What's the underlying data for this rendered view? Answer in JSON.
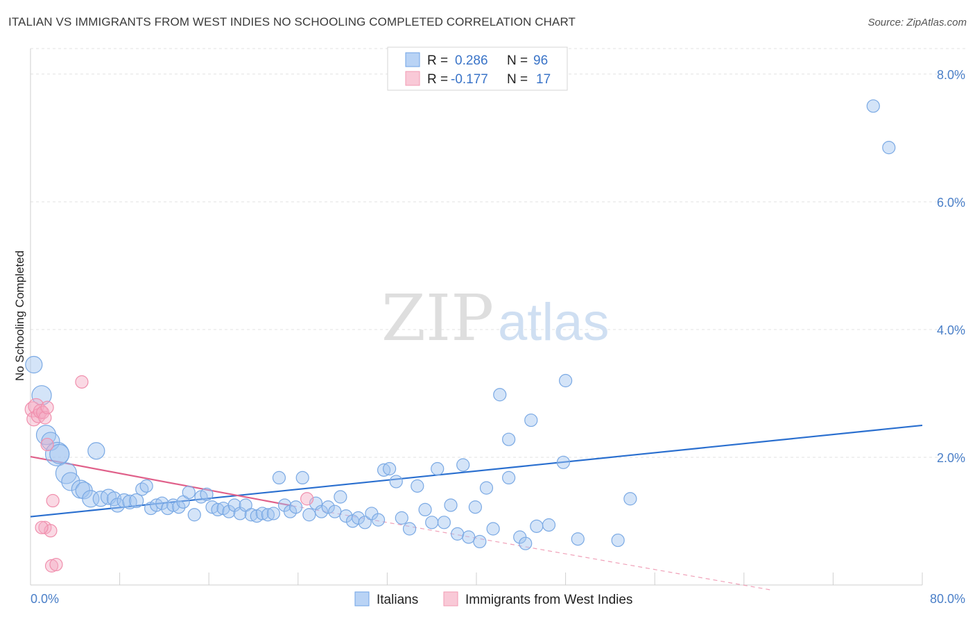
{
  "header": {
    "title": "ITALIAN VS IMMIGRANTS FROM WEST INDIES NO SCHOOLING COMPLETED CORRELATION CHART",
    "source": "Source: ZipAtlas.com"
  },
  "watermark": {
    "zip": "ZIP",
    "atlas": "atlas"
  },
  "legend_box": {
    "rows": [
      {
        "r_label": "R =",
        "r_value": "0.286",
        "n_label": "N =",
        "n_value": "96"
      },
      {
        "r_label": "R =",
        "r_value": "-0.177",
        "n_label": "N =",
        "n_value": "17"
      }
    ]
  },
  "chart_data": {
    "type": "scatter",
    "title": "ITALIAN VS IMMIGRANTS FROM WEST INDIES NO SCHOOLING COMPLETED CORRELATION CHART",
    "xlabel": "",
    "ylabel": "No Schooling Completed",
    "xlim": [
      0,
      80
    ],
    "ylim": [
      0,
      8.4
    ],
    "x_tick_labels": [
      "0.0%",
      "80.0%"
    ],
    "y_ticks": [
      2,
      4,
      6,
      8
    ],
    "y_tick_labels": [
      "2.0%",
      "4.0%",
      "6.0%",
      "8.0%"
    ],
    "grid": true,
    "legend_position": "bottom",
    "colors": {
      "italians": "#6fa3e6",
      "west_indies": "#f29ab3",
      "italians_line": "#2a6fcf",
      "west_indies_line": "#e0608a"
    },
    "series": [
      {
        "name": "Italians",
        "r": 0.286,
        "n": 96,
        "trend": {
          "x": [
            0,
            80
          ],
          "y": [
            1.07,
            2.5
          ]
        },
        "points": [
          [
            0.3,
            3.45,
            12
          ],
          [
            1.0,
            2.97,
            14
          ],
          [
            1.4,
            2.35,
            14
          ],
          [
            1.8,
            2.25,
            13
          ],
          [
            2.4,
            2.05,
            17
          ],
          [
            2.6,
            2.05,
            14
          ],
          [
            3.2,
            1.75,
            15
          ],
          [
            3.6,
            1.62,
            13
          ],
          [
            4.5,
            1.5,
            13
          ],
          [
            4.8,
            1.48,
            12
          ],
          [
            5.4,
            1.35,
            12
          ],
          [
            5.9,
            2.1,
            12
          ],
          [
            6.3,
            1.35,
            11
          ],
          [
            7.0,
            1.38,
            11
          ],
          [
            7.5,
            1.35,
            10
          ],
          [
            7.8,
            1.25,
            10
          ],
          [
            8.4,
            1.32,
            10
          ],
          [
            8.9,
            1.3,
            10
          ],
          [
            9.5,
            1.32,
            10
          ],
          [
            10.0,
            1.5,
            9
          ],
          [
            10.4,
            1.55,
            9
          ],
          [
            10.8,
            1.2,
            9
          ],
          [
            11.3,
            1.25,
            9
          ],
          [
            11.8,
            1.28,
            9
          ],
          [
            12.3,
            1.2,
            9
          ],
          [
            12.8,
            1.25,
            9
          ],
          [
            13.3,
            1.22,
            9
          ],
          [
            13.7,
            1.3,
            9
          ],
          [
            14.2,
            1.45,
            9
          ],
          [
            14.7,
            1.1,
            9
          ],
          [
            15.3,
            1.38,
            9
          ],
          [
            15.8,
            1.42,
            9
          ],
          [
            16.3,
            1.22,
            9
          ],
          [
            16.8,
            1.18,
            9
          ],
          [
            17.3,
            1.2,
            9
          ],
          [
            17.8,
            1.15,
            9
          ],
          [
            18.3,
            1.25,
            9
          ],
          [
            18.8,
            1.12,
            9
          ],
          [
            19.3,
            1.25,
            9
          ],
          [
            19.8,
            1.1,
            9
          ],
          [
            20.3,
            1.08,
            9
          ],
          [
            20.8,
            1.12,
            9
          ],
          [
            21.3,
            1.1,
            9
          ],
          [
            21.8,
            1.12,
            9
          ],
          [
            22.3,
            1.68,
            9
          ],
          [
            22.8,
            1.25,
            9
          ],
          [
            23.3,
            1.15,
            9
          ],
          [
            23.8,
            1.22,
            9
          ],
          [
            24.4,
            1.68,
            9
          ],
          [
            25.0,
            1.1,
            9
          ],
          [
            25.6,
            1.28,
            9
          ],
          [
            26.1,
            1.15,
            9
          ],
          [
            26.7,
            1.22,
            9
          ],
          [
            27.3,
            1.15,
            9
          ],
          [
            27.8,
            1.38,
            9
          ],
          [
            28.3,
            1.08,
            9
          ],
          [
            28.9,
            1.0,
            9
          ],
          [
            29.4,
            1.05,
            9
          ],
          [
            30.0,
            0.98,
            9
          ],
          [
            30.6,
            1.12,
            9
          ],
          [
            31.2,
            1.02,
            9
          ],
          [
            31.7,
            1.8,
            9
          ],
          [
            32.2,
            1.82,
            9
          ],
          [
            32.8,
            1.62,
            9
          ],
          [
            33.3,
            1.05,
            9
          ],
          [
            34.0,
            0.88,
            9
          ],
          [
            34.7,
            1.55,
            9
          ],
          [
            35.4,
            1.18,
            9
          ],
          [
            36.0,
            0.98,
            9
          ],
          [
            36.5,
            1.82,
            9
          ],
          [
            37.1,
            0.98,
            9
          ],
          [
            37.7,
            1.25,
            9
          ],
          [
            38.3,
            0.8,
            9
          ],
          [
            38.8,
            1.88,
            9
          ],
          [
            39.3,
            0.75,
            9
          ],
          [
            39.9,
            1.22,
            9
          ],
          [
            40.3,
            0.68,
            9
          ],
          [
            40.9,
            1.52,
            9
          ],
          [
            41.5,
            0.88,
            9
          ],
          [
            42.1,
            2.98,
            9
          ],
          [
            42.9,
            1.68,
            9
          ],
          [
            42.9,
            2.28,
            9
          ],
          [
            43.9,
            0.75,
            9
          ],
          [
            44.4,
            0.65,
            9
          ],
          [
            44.9,
            2.58,
            9
          ],
          [
            45.4,
            0.92,
            9
          ],
          [
            46.5,
            0.94,
            9
          ],
          [
            48.0,
            3.2,
            9
          ],
          [
            47.8,
            1.92,
            9
          ],
          [
            49.1,
            0.72,
            9
          ],
          [
            52.7,
            0.7,
            9
          ],
          [
            53.8,
            1.35,
            9
          ],
          [
            75.6,
            7.5,
            9
          ],
          [
            77.0,
            6.85,
            9
          ]
        ]
      },
      {
        "name": "Immigrants from West Indies",
        "r": -0.177,
        "n": 17,
        "trend": {
          "x": [
            0,
            23.5
          ],
          "y": [
            2.01,
            1.24
          ]
        },
        "trend_dashed": {
          "x": [
            23.5,
            66.5
          ],
          "y": [
            1.24,
            -0.08
          ]
        },
        "points": [
          [
            0.2,
            2.75,
            11
          ],
          [
            0.3,
            2.6,
            10
          ],
          [
            0.5,
            2.8,
            11
          ],
          [
            0.7,
            2.65,
            10
          ],
          [
            0.9,
            2.72,
            10
          ],
          [
            1.1,
            2.7,
            9
          ],
          [
            1.3,
            2.62,
            9
          ],
          [
            1.5,
            2.78,
            9
          ],
          [
            1.5,
            2.2,
            9
          ],
          [
            1.3,
            0.9,
            9
          ],
          [
            1.8,
            0.85,
            9
          ],
          [
            1.0,
            0.9,
            9
          ],
          [
            2.0,
            1.32,
            9
          ],
          [
            1.9,
            0.3,
            9
          ],
          [
            2.3,
            0.32,
            9
          ],
          [
            4.6,
            3.18,
            9
          ],
          [
            24.8,
            1.35,
            9
          ]
        ]
      }
    ]
  }
}
